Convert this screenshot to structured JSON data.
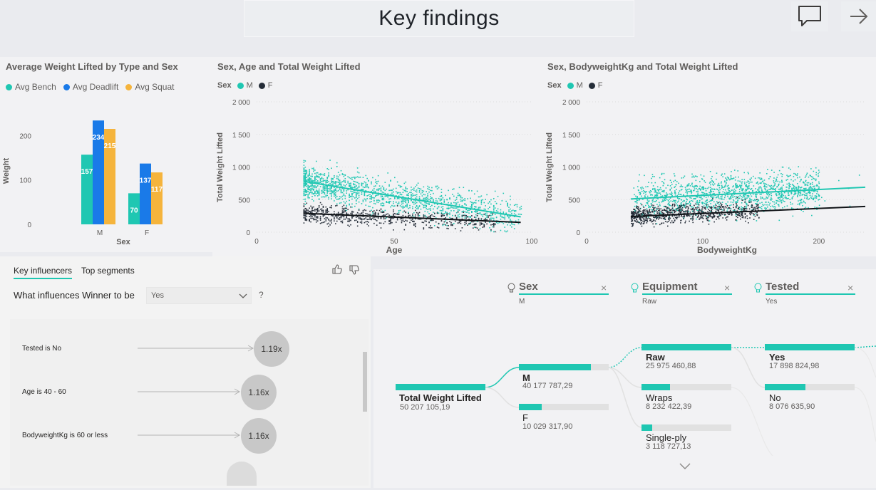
{
  "page": {
    "title": "Key findings"
  },
  "toolbar": {
    "comment_icon": "comment-icon",
    "next_icon": "arrow-right-icon"
  },
  "colors": {
    "teal": "#1fc7b2",
    "blue": "#1a7ae8",
    "orange": "#f5b43c",
    "dark": "#252d38"
  },
  "bar_chart": {
    "title": "Average Weight Lifted by Type and Sex",
    "legend": [
      "Avg Bench",
      "Avg Deadlift",
      "Avg Squat"
    ],
    "ylabel": "Weight",
    "xlabel": "Sex"
  },
  "scatter_age": {
    "title": "Sex, Age and Total Weight Lifted",
    "legend_label": "Sex",
    "legend": [
      "M",
      "F"
    ],
    "xlabel": "Age",
    "ylabel": "Total Weight Lifted"
  },
  "scatter_bw": {
    "title": "Sex, BodyweightKg and Total Weight Lifted",
    "legend_label": "Sex",
    "legend": [
      "M",
      "F"
    ],
    "xlabel": "BodyweightKg",
    "ylabel": "Total Weight Lifted"
  },
  "chart_data": [
    {
      "type": "bar",
      "title": "Average Weight Lifted by Type and Sex",
      "categories": [
        "M",
        "F"
      ],
      "series": [
        {
          "name": "Avg Bench",
          "values": [
            157,
            70
          ]
        },
        {
          "name": "Avg Deadlift",
          "values": [
            234,
            137
          ]
        },
        {
          "name": "Avg Squat",
          "values": [
            215,
            117
          ]
        }
      ],
      "xlabel": "Sex",
      "ylabel": "Weight",
      "ylim": [
        0,
        250
      ],
      "yticks": [
        "0",
        "100",
        "200"
      ],
      "legend": "top-left"
    },
    {
      "type": "scatter",
      "title": "Sex, Age and Total Weight Lifted",
      "xlabel": "Age",
      "ylabel": "Total Weight Lifted",
      "xlim": [
        0,
        100
      ],
      "ylim": [
        0,
        2000
      ],
      "xticks": [
        "0",
        "50",
        "100"
      ],
      "yticks": [
        "0",
        "500",
        "1 000",
        "1 500",
        "2 000"
      ],
      "series": [
        {
          "name": "M",
          "x_range": [
            17,
            96
          ],
          "trend": [
            [
              17,
              780
            ],
            [
              96,
              235
            ]
          ]
        },
        {
          "name": "F",
          "x_range": [
            17,
            96
          ],
          "trend": [
            [
              17,
              290
            ],
            [
              96,
              150
            ]
          ]
        }
      ],
      "legend": "top-left"
    },
    {
      "type": "scatter",
      "title": "Sex, BodyweightKg and Total Weight Lifted",
      "xlabel": "BodyweightKg",
      "ylabel": "Total Weight Lifted",
      "xlim": [
        0,
        240
      ],
      "ylim": [
        0,
        2000
      ],
      "xticks": [
        "0",
        "100",
        "200"
      ],
      "yticks": [
        "0",
        "500",
        "1 000",
        "1 500",
        "2 000"
      ],
      "series": [
        {
          "name": "M",
          "x_range": [
            40,
            240
          ],
          "trend": [
            [
              38,
              510
            ],
            [
              240,
              690
            ]
          ]
        },
        {
          "name": "F",
          "x_range": [
            38,
            200
          ],
          "trend": [
            [
              38,
              240
            ],
            [
              240,
              395
            ]
          ]
        }
      ],
      "legend": "top-left"
    }
  ],
  "key_influencers": {
    "tabs": [
      "Key influencers",
      "Top segments"
    ],
    "question": "What influences Winner to be",
    "selected_value": "Yes",
    "help": "?",
    "rows": [
      {
        "label": "Tested is No",
        "value": "1.19x"
      },
      {
        "label": "Age is 40 - 60",
        "value": "1.16x"
      },
      {
        "label": "BodyweightKg is 60 or less",
        "value": "1.16x"
      }
    ]
  },
  "decomp_tree": {
    "levels": [
      {
        "name": "Sex",
        "value": "M"
      },
      {
        "name": "Equipment",
        "value": "Raw"
      },
      {
        "name": "Tested",
        "value": "Yes"
      }
    ],
    "root": {
      "label": "Total Weight Lifted",
      "value": "50 207 105,19",
      "fraction": 1.0
    },
    "sex": [
      {
        "label": "M",
        "value": "40 177 787,29",
        "fraction": 0.8
      },
      {
        "label": "F",
        "value": "10 029 317,90",
        "fraction": 0.25
      }
    ],
    "equipment": [
      {
        "label": "Raw",
        "value": "25 975 460,88",
        "fraction": 1.0
      },
      {
        "label": "Wraps",
        "value": "8 232 422,39",
        "fraction": 0.32
      },
      {
        "label": "Single-ply",
        "value": "3 118 727,13",
        "fraction": 0.12
      }
    ],
    "tested": [
      {
        "label": "Yes",
        "value": "17 898 824,98",
        "fraction": 1.0
      },
      {
        "label": "No",
        "value": "8 076 635,90",
        "fraction": 0.45
      }
    ]
  }
}
